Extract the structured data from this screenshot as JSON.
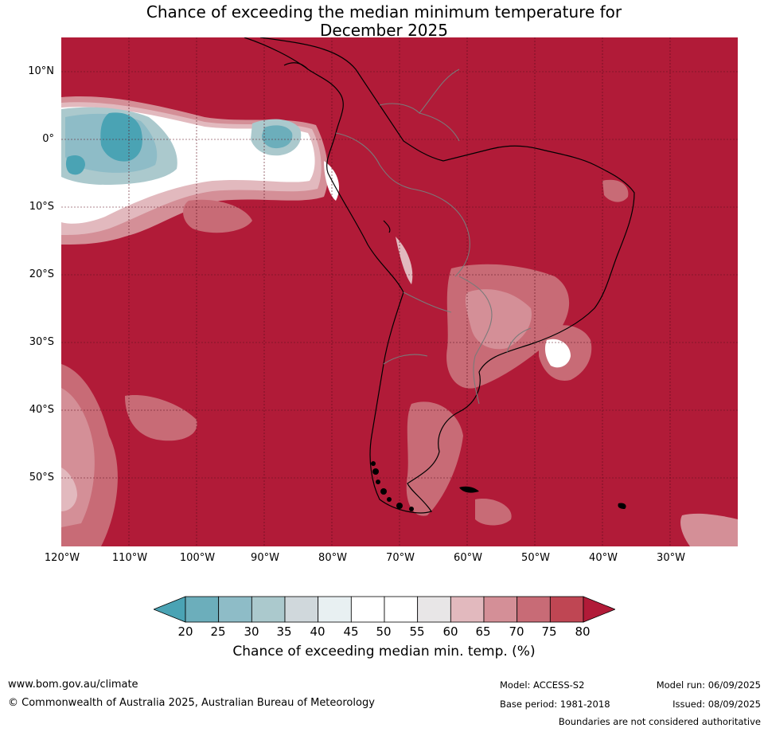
{
  "title_line1": "Chance of exceeding the median minimum temperature for",
  "title_line2": "December 2025",
  "map": {
    "background_color": "#b11b38",
    "lat_labels": [
      "10°N",
      "0°",
      "10°S",
      "20°S",
      "30°S",
      "40°S",
      "50°S"
    ],
    "lon_labels": [
      "120°W",
      "110°W",
      "100°W",
      "90°W",
      "80°W",
      "70°W",
      "60°W",
      "50°W",
      "40°W",
      "30°W"
    ]
  },
  "colorbar": {
    "label": "Chance of exceeding median min. temp. (%)",
    "ticks": [
      "20",
      "25",
      "30",
      "35",
      "40",
      "45",
      "50",
      "55",
      "60",
      "65",
      "70",
      "75",
      "80"
    ],
    "colors": [
      "#4aa3b4",
      "#6caebb",
      "#8ebcc7",
      "#abc9cd",
      "#d0d8dc",
      "#e8f0f2",
      "#ffffff",
      "#ffffff",
      "#e8e6e7",
      "#e2b9be",
      "#d48f97",
      "#c86b76",
      "#bf4653",
      "#b11b38"
    ]
  },
  "footer": {
    "website": "www.bom.gov.au/climate",
    "copyright": "© Commonwealth of Australia 2025, Australian Bureau of Meteorology",
    "model": "Model: ACCESS-S2",
    "base_period": "Base period: 1981-2018",
    "model_run": "Model run: 06/09/2025",
    "issued": "Issued: 08/09/2025",
    "disclaimer": "Boundaries are not considered authoritative"
  }
}
